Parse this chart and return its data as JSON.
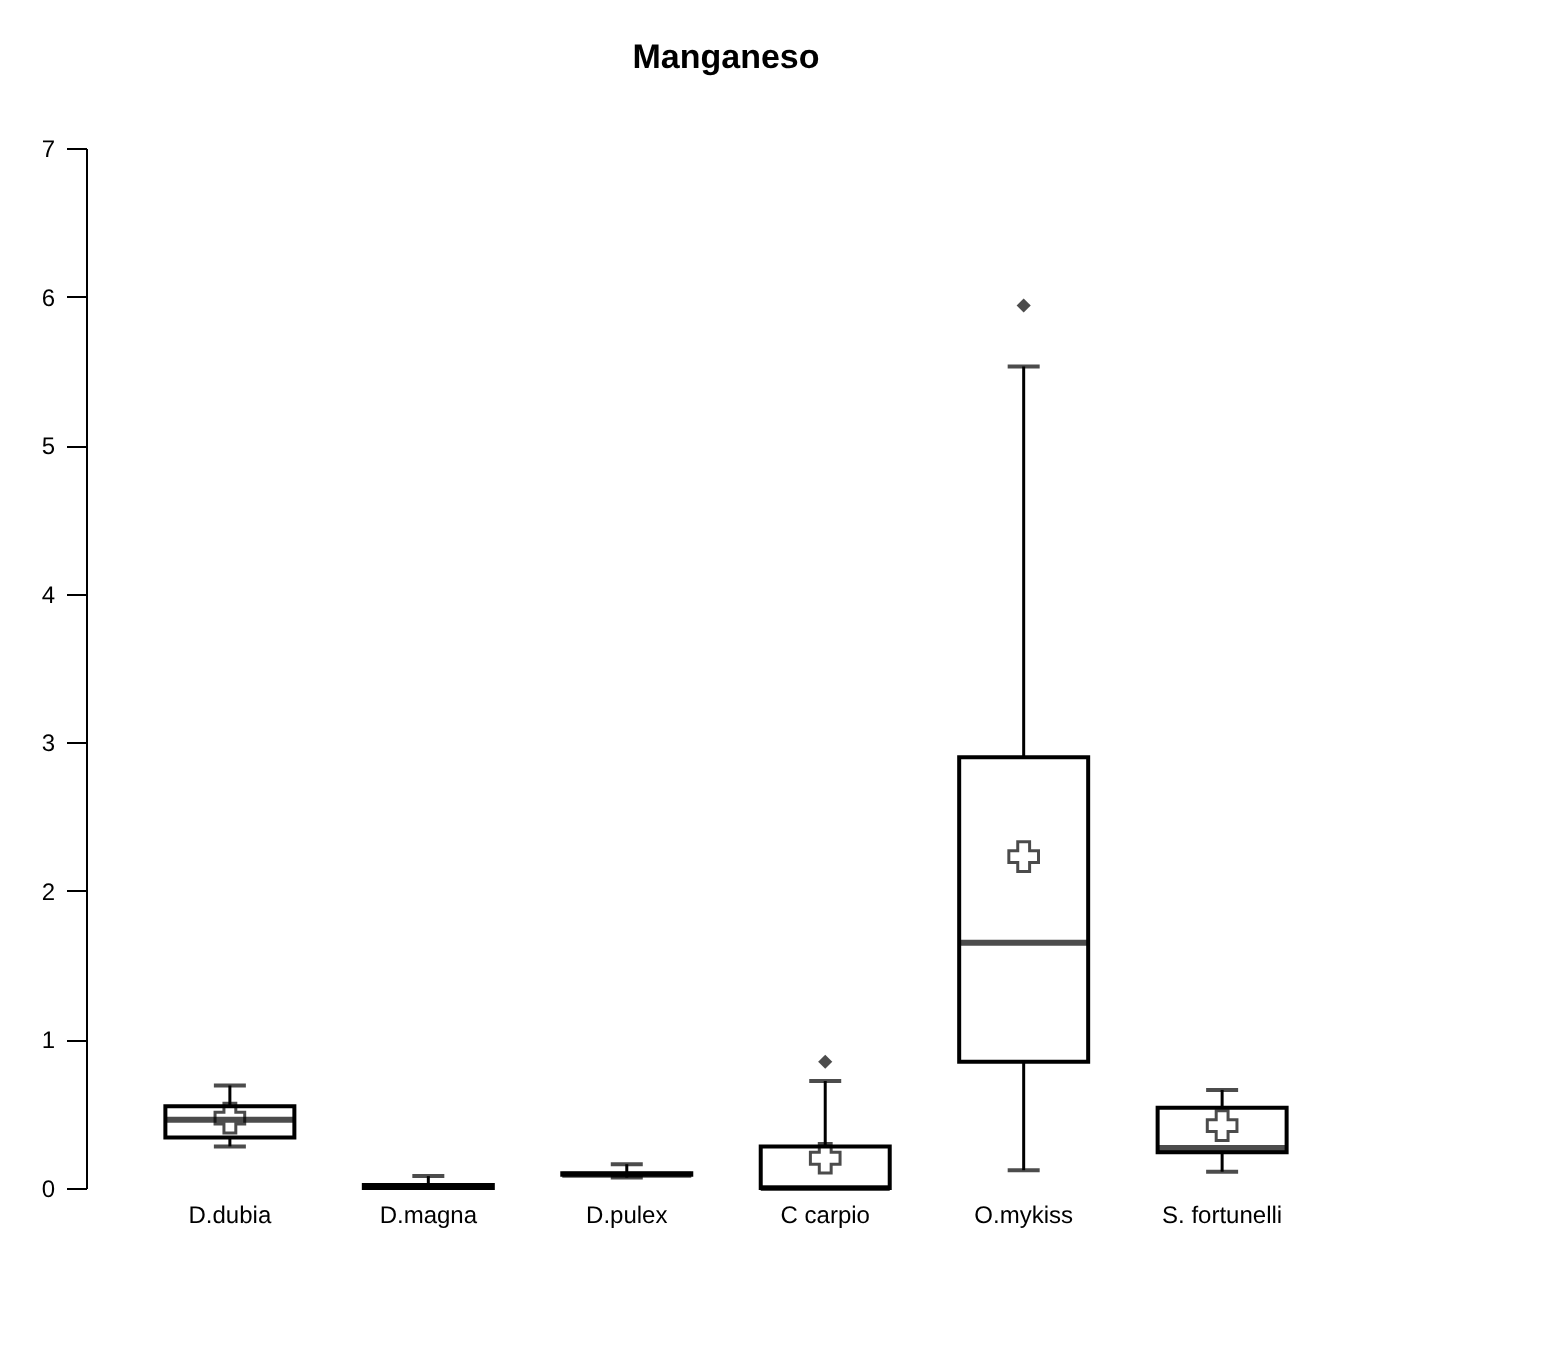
{
  "chart_data": {
    "type": "box",
    "title": "Manganeso",
    "categories": [
      "D.dubia",
      "D.magna",
      "D.pulex",
      "C carpio",
      "O.mykiss",
      "S. fortunelli"
    ],
    "boxes": [
      {
        "low": 0.28,
        "q1": 0.34,
        "median": 0.46,
        "q3": 0.55,
        "high": 0.69,
        "mean": 0.47
      },
      {
        "low": 0,
        "q1": 0,
        "median": 0.01,
        "q3": 0.02,
        "high": 0.08
      },
      {
        "low": 0.07,
        "q1": 0.09,
        "median": 0.09,
        "q3": 0.1,
        "high": 0.16
      },
      {
        "low": 0,
        "q1": 0,
        "median": 0,
        "q3": 0.28,
        "high": 0.72,
        "mean": 0.2,
        "outliers": [
          0.85
        ]
      },
      {
        "low": 0.12,
        "q1": 0.85,
        "median": 1.65,
        "q3": 2.9,
        "high": 5.53,
        "mean": 2.23,
        "outliers": [
          5.94
        ]
      },
      {
        "low": 0.11,
        "q1": 0.24,
        "median": 0.27,
        "q3": 0.54,
        "high": 0.66,
        "mean": 0.42
      }
    ],
    "color": "#000000",
    "ylim": [
      0,
      7
    ],
    "yticks": [
      0,
      1,
      2,
      3,
      4,
      5,
      6,
      7
    ],
    "grid": false
  }
}
